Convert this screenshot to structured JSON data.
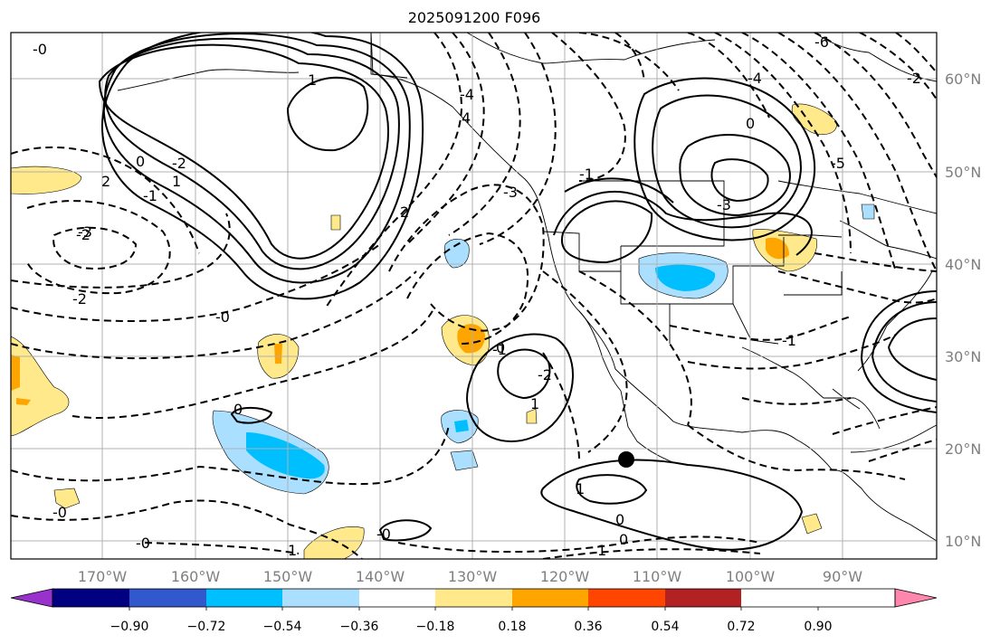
{
  "title": "2025091200 F096",
  "map": {
    "lat_labels": [
      "60°N",
      "50°N",
      "40°N",
      "30°N",
      "20°N",
      "10°N"
    ],
    "lon_labels": [
      "170°W",
      "160°W",
      "150°W",
      "140°W",
      "130°W",
      "120°W",
      "110°W",
      "100°W",
      "90°W"
    ],
    "contour_labels": [
      "-0",
      "-2",
      "2",
      "0",
      "-1",
      "-3",
      "-2",
      "-2",
      "1",
      "1",
      "2",
      "-4",
      "4",
      "-3",
      "-3",
      "0",
      "-1",
      "-0",
      "-1",
      "0",
      "-2",
      "0",
      "1",
      "-0",
      "1",
      "-0",
      "-0",
      "1",
      "1",
      "0",
      "0",
      "-1",
      "-4",
      "-5",
      "-6",
      "-2"
    ],
    "marker": "storm-center"
  },
  "colorbar": {
    "ticks": [
      "−0.90",
      "−0.72",
      "−0.54",
      "−0.36",
      "−0.18",
      "0.18",
      "0.36",
      "0.54",
      "0.72",
      "0.90"
    ],
    "colors": [
      "#9932cc",
      "#000080",
      "#3158cc",
      "#00bfff",
      "#aadfff",
      "#ffffff",
      "#ffe98a",
      "#ffa500",
      "#ff4500",
      "#b22222",
      "#ff86ad"
    ]
  },
  "chart_data": {
    "type": "contour-map",
    "title": "2025091200 F096",
    "lat_range": [
      8,
      65
    ],
    "lon_range": [
      -180,
      -80
    ],
    "colorbar_levels": [
      -0.9,
      -0.72,
      -0.54,
      -0.36,
      -0.18,
      0.18,
      0.36,
      0.54,
      0.72,
      0.9
    ]
  }
}
